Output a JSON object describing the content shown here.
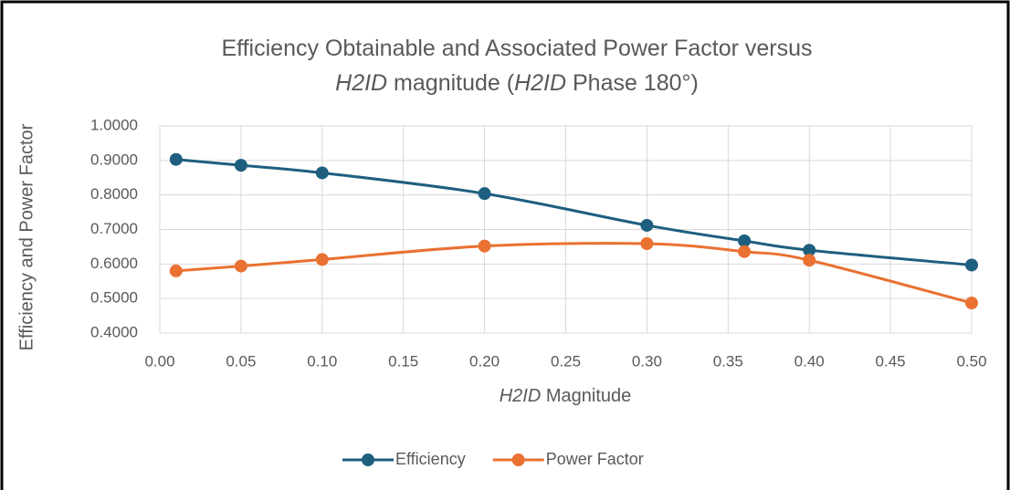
{
  "chart_data": {
    "type": "line",
    "title": [
      [
        {
          "text": "Efficiency Obtainable and Associated Power Factor  versus",
          "italic": false
        }
      ],
      [
        {
          "text": "H2ID",
          "italic": true
        },
        {
          "text": " magnitude (",
          "italic": false
        },
        {
          "text": "H2ID",
          "italic": true
        },
        {
          "text": " Phase 180°)",
          "italic": false
        }
      ]
    ],
    "x_label": [
      {
        "text": "H2ID",
        "italic": true
      },
      {
        "text": " Magnitude",
        "italic": false
      }
    ],
    "y_label": "Efficiency and Power Factor",
    "x": [
      0.01,
      0.05,
      0.1,
      0.2,
      0.3,
      0.36,
      0.4,
      0.5
    ],
    "series": [
      {
        "name": "Efficiency",
        "color": "#1e5f80",
        "values": [
          0.903,
          0.886,
          0.864,
          0.804,
          0.712,
          0.667,
          0.64,
          0.597
        ]
      },
      {
        "name": "Power Factor",
        "color": "#e97132",
        "values": [
          0.58,
          0.594,
          0.613,
          0.652,
          0.659,
          0.636,
          0.611,
          0.487
        ]
      }
    ],
    "xlim": [
      0,
      0.5
    ],
    "ylim": [
      0.4,
      1.0
    ],
    "xticks": [
      {
        "value": 0,
        "label": "0.00"
      },
      {
        "value": 0.05,
        "label": "0.05"
      },
      {
        "value": 0.1,
        "label": "0.10"
      },
      {
        "value": 0.15,
        "label": "0.15"
      },
      {
        "value": 0.2,
        "label": "0.20"
      },
      {
        "value": 0.25,
        "label": "0.25"
      },
      {
        "value": 0.3,
        "label": "0.30"
      },
      {
        "value": 0.35,
        "label": "0.35"
      },
      {
        "value": 0.4,
        "label": "0.40"
      },
      {
        "value": 0.45,
        "label": "0.45"
      },
      {
        "value": 0.5,
        "label": "0.50"
      }
    ],
    "yticks": [
      {
        "value": 0.4,
        "label": "0.4000"
      },
      {
        "value": 0.5,
        "label": "0.5000"
      },
      {
        "value": 0.6,
        "label": "0.6000"
      },
      {
        "value": 0.7,
        "label": "0.7000"
      },
      {
        "value": 0.8,
        "label": "0.8000"
      },
      {
        "value": 0.9,
        "label": "0.9000"
      },
      {
        "value": 1.0,
        "label": "1.0000"
      }
    ],
    "grid": true,
    "smooth": true,
    "legend": "bottom"
  }
}
